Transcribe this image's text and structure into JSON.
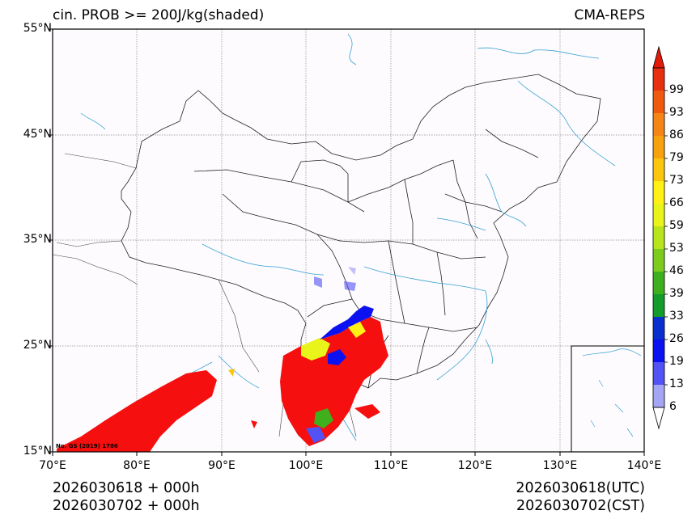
{
  "title": {
    "left": "cin. PROB >= 200J/kg(shaded)",
    "right": "CMA-REPS"
  },
  "axes": {
    "lat_labels": [
      "55°N",
      "45°N",
      "35°N",
      "25°N",
      "15°N"
    ],
    "lon_labels": [
      "70°E",
      "80°E",
      "90°E",
      "100°E",
      "110°E",
      "120°E",
      "130°E",
      "140°E"
    ],
    "lat_range": [
      15,
      55
    ],
    "lon_range": [
      70,
      140
    ],
    "grid": true
  },
  "colorbar": {
    "labels": [
      "99",
      "93",
      "86",
      "79",
      "73",
      "66",
      "59",
      "53",
      "46",
      "39",
      "33",
      "26",
      "19",
      "13",
      "6"
    ],
    "colors": [
      "#e8300e",
      "#ef5a10",
      "#f58516",
      "#f8a10f",
      "#fbc60d",
      "#fff015",
      "#e8f41a",
      "#b7e41a",
      "#7dcc1d",
      "#3fb01d",
      "#119c2c",
      "#0b2fcf",
      "#0b11f0",
      "#5252f5",
      "#a5a5f5"
    ],
    "max_color": "#e41b08"
  },
  "map_note": "No. GS (2019) 1786",
  "footer": {
    "left_line1": "2026030618  +  000h",
    "left_line2": "2026030702  +  000h",
    "right_line1": "2026030618(UTC)",
    "right_line2": "2026030702(CST)"
  }
}
